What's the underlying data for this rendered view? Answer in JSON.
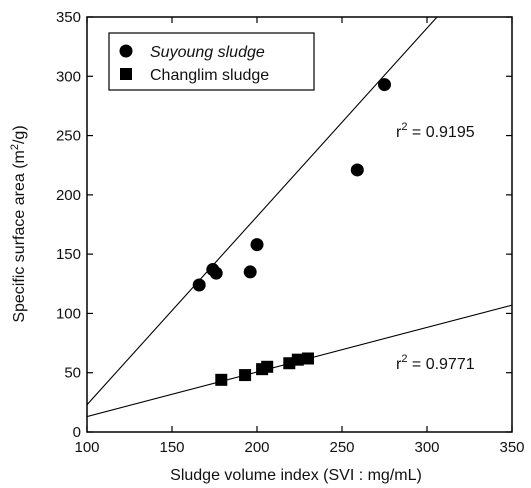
{
  "chart_data": {
    "type": "scatter",
    "xlabel": "Sludge volume index (SVI : mg/mL)",
    "ylabel_main": "Specific surface area (m",
    "ylabel_sup": "2",
    "ylabel_tail": "/g)",
    "xlim": [
      100,
      350
    ],
    "ylim": [
      0,
      350
    ],
    "x_ticks": [
      100,
      150,
      200,
      250,
      300,
      350
    ],
    "y_ticks": [
      0,
      50,
      100,
      150,
      200,
      250,
      300,
      350
    ],
    "legend_position": "top-left",
    "grid": false,
    "series": [
      {
        "name": "Suyoung sludge",
        "marker": "circle",
        "points": [
          [
            166,
            124
          ],
          [
            174,
            137
          ],
          [
            176,
            134
          ],
          [
            196,
            135
          ],
          [
            200,
            158
          ],
          [
            259,
            221
          ],
          [
            275,
            293
          ]
        ],
        "fit": [
          [
            100,
            23
          ],
          [
            350,
            420
          ]
        ],
        "r2_prefix": "r",
        "r2_sup": "2",
        "r2_value": " = 0.9195"
      },
      {
        "name": "Changlim sludge",
        "marker": "square",
        "points": [
          [
            179,
            44
          ],
          [
            193,
            48
          ],
          [
            203,
            53
          ],
          [
            206,
            55
          ],
          [
            219,
            58
          ],
          [
            224,
            61
          ],
          [
            230,
            62
          ]
        ],
        "fit": [
          [
            100,
            13
          ],
          [
            350,
            107
          ]
        ],
        "r2_prefix": "r",
        "r2_sup": "2",
        "r2_value": " = 0.9771"
      }
    ]
  }
}
